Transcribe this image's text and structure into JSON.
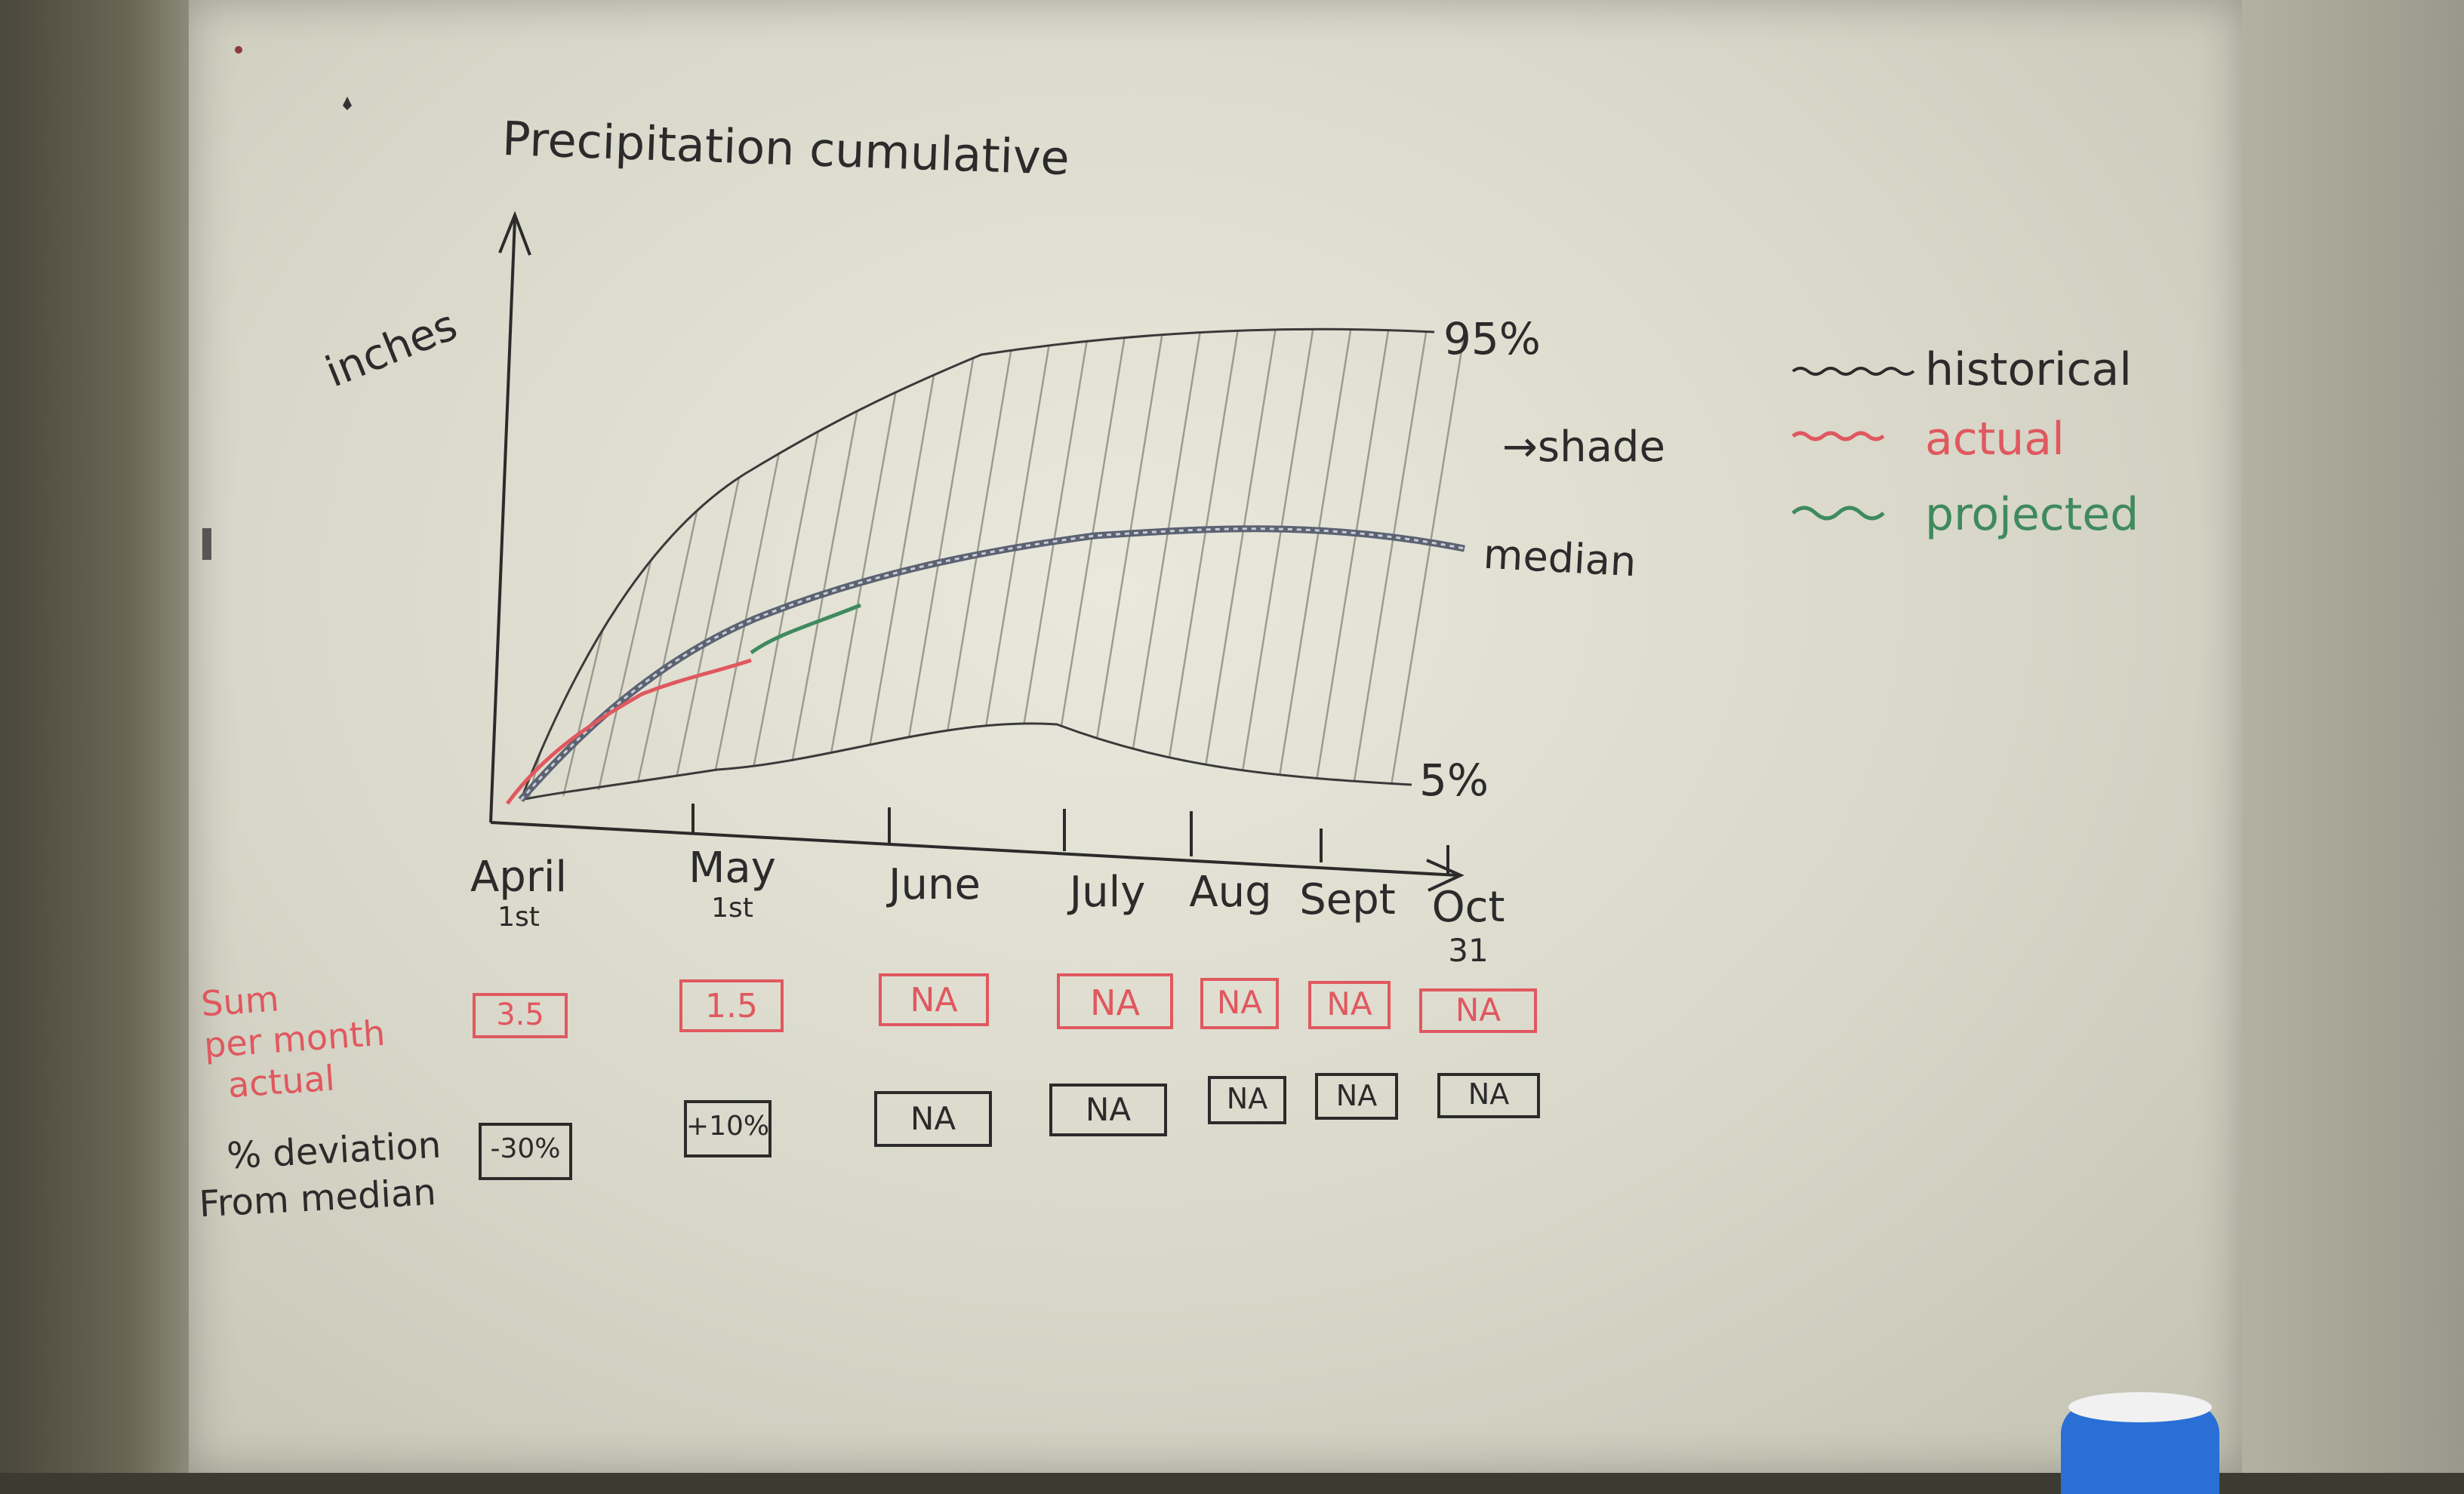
{
  "title": "Precipitation cumulative",
  "y_axis_label": "inches",
  "annotations": {
    "upper_percentile": "95%",
    "lower_percentile": "5%",
    "shade": "→shade",
    "median": "median"
  },
  "legend": [
    {
      "label": "historical",
      "color": "#2b2b2b"
    },
    {
      "label": "actual",
      "color": "#e0585f"
    },
    {
      "label": "projected",
      "color": "#3f8a5d"
    }
  ],
  "x_ticks": [
    {
      "label": "April",
      "sub": "1st"
    },
    {
      "label": "May",
      "sub": "1st"
    },
    {
      "label": "June",
      "sub": ""
    },
    {
      "label": "July",
      "sub": ""
    },
    {
      "label": "Aug",
      "sub": ""
    },
    {
      "label": "Sept",
      "sub": ""
    },
    {
      "label": "Oct",
      "sub": "31"
    }
  ],
  "rows": {
    "sum_label": [
      "Sum",
      "per month",
      "actual"
    ],
    "sum_values": [
      "3.5",
      "1.5",
      "NA",
      "NA",
      "NA",
      "NA",
      "NA"
    ],
    "deviation_label": [
      "% deviation",
      "From median"
    ],
    "deviation_values": [
      "-30%",
      "+10%",
      "NA",
      "NA",
      "NA",
      "NA",
      "NA"
    ]
  },
  "colors": {
    "ink_black": "#2b2b2b",
    "ink_red": "#e0585f",
    "ink_green": "#3f8a5d",
    "board": "#e3e2d6"
  }
}
